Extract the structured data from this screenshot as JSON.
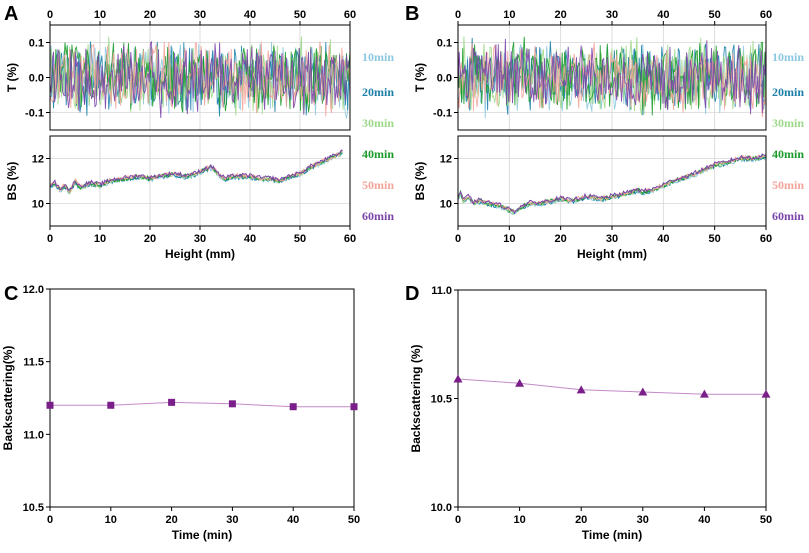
{
  "panels": {
    "A": {
      "label": "A"
    },
    "B": {
      "label": "B"
    },
    "C": {
      "label": "C"
    },
    "D": {
      "label": "D"
    }
  },
  "legend": [
    {
      "label": "10min",
      "color": "#8cc8e0"
    },
    {
      "label": "20min",
      "color": "#1b7fa8"
    },
    {
      "label": "30min",
      "color": "#9ed88a"
    },
    {
      "label": "40min",
      "color": "#1a9a2a"
    },
    {
      "label": "50min",
      "color": "#f4a49a"
    },
    {
      "label": "60min",
      "color": "#7a44a8"
    }
  ],
  "chart_data": [
    {
      "id": "A",
      "type": "line",
      "subplots": [
        {
          "name": "T",
          "ylabel": "T (%)",
          "ylim": [
            -0.15,
            0.15
          ],
          "yticks": [
            "0.1",
            "0.0",
            "-0.1"
          ],
          "noise": "transmission fluctuating between about -0.1 and 0.1 for all series"
        },
        {
          "name": "BS",
          "ylabel": "BS (%)",
          "ylim": [
            9,
            13
          ],
          "yticks": [
            "12",
            "10"
          ],
          "profile_x": [
            0,
            1,
            2,
            3,
            4,
            5,
            6,
            8,
            10,
            12,
            15,
            18,
            20,
            22,
            25,
            27,
            29,
            30,
            31,
            32,
            33,
            34,
            35,
            37,
            40,
            42,
            44,
            46,
            48,
            50,
            52,
            54,
            56,
            58,
            58.5
          ],
          "profile_y": [
            10.8,
            10.9,
            10.6,
            10.8,
            10.5,
            11.0,
            10.7,
            10.9,
            10.8,
            11.0,
            11.1,
            11.2,
            11.1,
            11.2,
            11.3,
            11.2,
            11.3,
            11.4,
            11.5,
            11.6,
            11.5,
            11.2,
            11.1,
            11.2,
            11.2,
            11.1,
            11.1,
            11.0,
            11.2,
            11.3,
            11.6,
            11.8,
            12.0,
            12.2,
            12.3
          ]
        }
      ],
      "xlabel": "Height (mm)",
      "xlim": [
        0,
        60
      ],
      "xticks": [
        "0",
        "10",
        "20",
        "30",
        "40",
        "50",
        "60"
      ],
      "series": [
        "10min",
        "20min",
        "30min",
        "40min",
        "50min",
        "60min"
      ]
    },
    {
      "id": "B",
      "type": "line",
      "subplots": [
        {
          "name": "T",
          "ylabel": "T (%)",
          "ylim": [
            -0.15,
            0.15
          ],
          "yticks": [
            "0.1",
            "0.0",
            "-0.1"
          ],
          "noise": "transmission fluctuating between about -0.1 and 0.1 for all series"
        },
        {
          "name": "BS",
          "ylabel": "BS (%)",
          "ylim": [
            9,
            13
          ],
          "yticks": [
            "12",
            "10"
          ],
          "profile_x": [
            0,
            0.5,
            1,
            2,
            3,
            4,
            6,
            8,
            10,
            11,
            12,
            14,
            16,
            18,
            20,
            22,
            25,
            28,
            30,
            32,
            34,
            35,
            36,
            38,
            40,
            42,
            45,
            48,
            50,
            52,
            55,
            58,
            60
          ],
          "profile_y": [
            10.2,
            10.5,
            10.1,
            10.3,
            10.0,
            10.1,
            10.0,
            9.9,
            9.7,
            9.6,
            9.8,
            10.0,
            10.0,
            10.1,
            10.2,
            10.1,
            10.3,
            10.2,
            10.3,
            10.4,
            10.5,
            10.6,
            10.5,
            10.6,
            10.8,
            11.0,
            11.2,
            11.5,
            11.7,
            11.8,
            12.0,
            12.0,
            12.1
          ]
        }
      ],
      "xlabel": "Height (mm)",
      "xlim": [
        0,
        60
      ],
      "xticks": [
        "0",
        "10",
        "20",
        "30",
        "40",
        "50",
        "60"
      ],
      "series": [
        "10min",
        "20min",
        "30min",
        "40min",
        "50min",
        "60min"
      ]
    },
    {
      "id": "C",
      "type": "line",
      "marker": "square",
      "color": "#7a1f8a",
      "xlabel": "Time (min)",
      "ylabel": "Backscattering(%)",
      "xlim": [
        0,
        50
      ],
      "ylim": [
        10.5,
        12.0
      ],
      "xticks": [
        "0",
        "10",
        "20",
        "30",
        "40",
        "50"
      ],
      "yticks": [
        "10.5",
        "11.0",
        "11.5",
        "12.0"
      ],
      "x": [
        0,
        10,
        20,
        30,
        40,
        50
      ],
      "y": [
        11.2,
        11.2,
        11.22,
        11.21,
        11.19,
        11.19
      ]
    },
    {
      "id": "D",
      "type": "line",
      "marker": "triangle",
      "color": "#7a1f8a",
      "xlabel": "Time (min)",
      "ylabel": "Backscattering (%)",
      "xlim": [
        0,
        50
      ],
      "ylim": [
        10.0,
        11.0
      ],
      "xticks": [
        "0",
        "10",
        "20",
        "30",
        "40",
        "50"
      ],
      "yticks": [
        "10.0",
        "10.5",
        "11.0"
      ],
      "x": [
        0,
        10,
        20,
        30,
        40,
        50
      ],
      "y": [
        10.59,
        10.57,
        10.54,
        10.53,
        10.52,
        10.52
      ]
    }
  ]
}
